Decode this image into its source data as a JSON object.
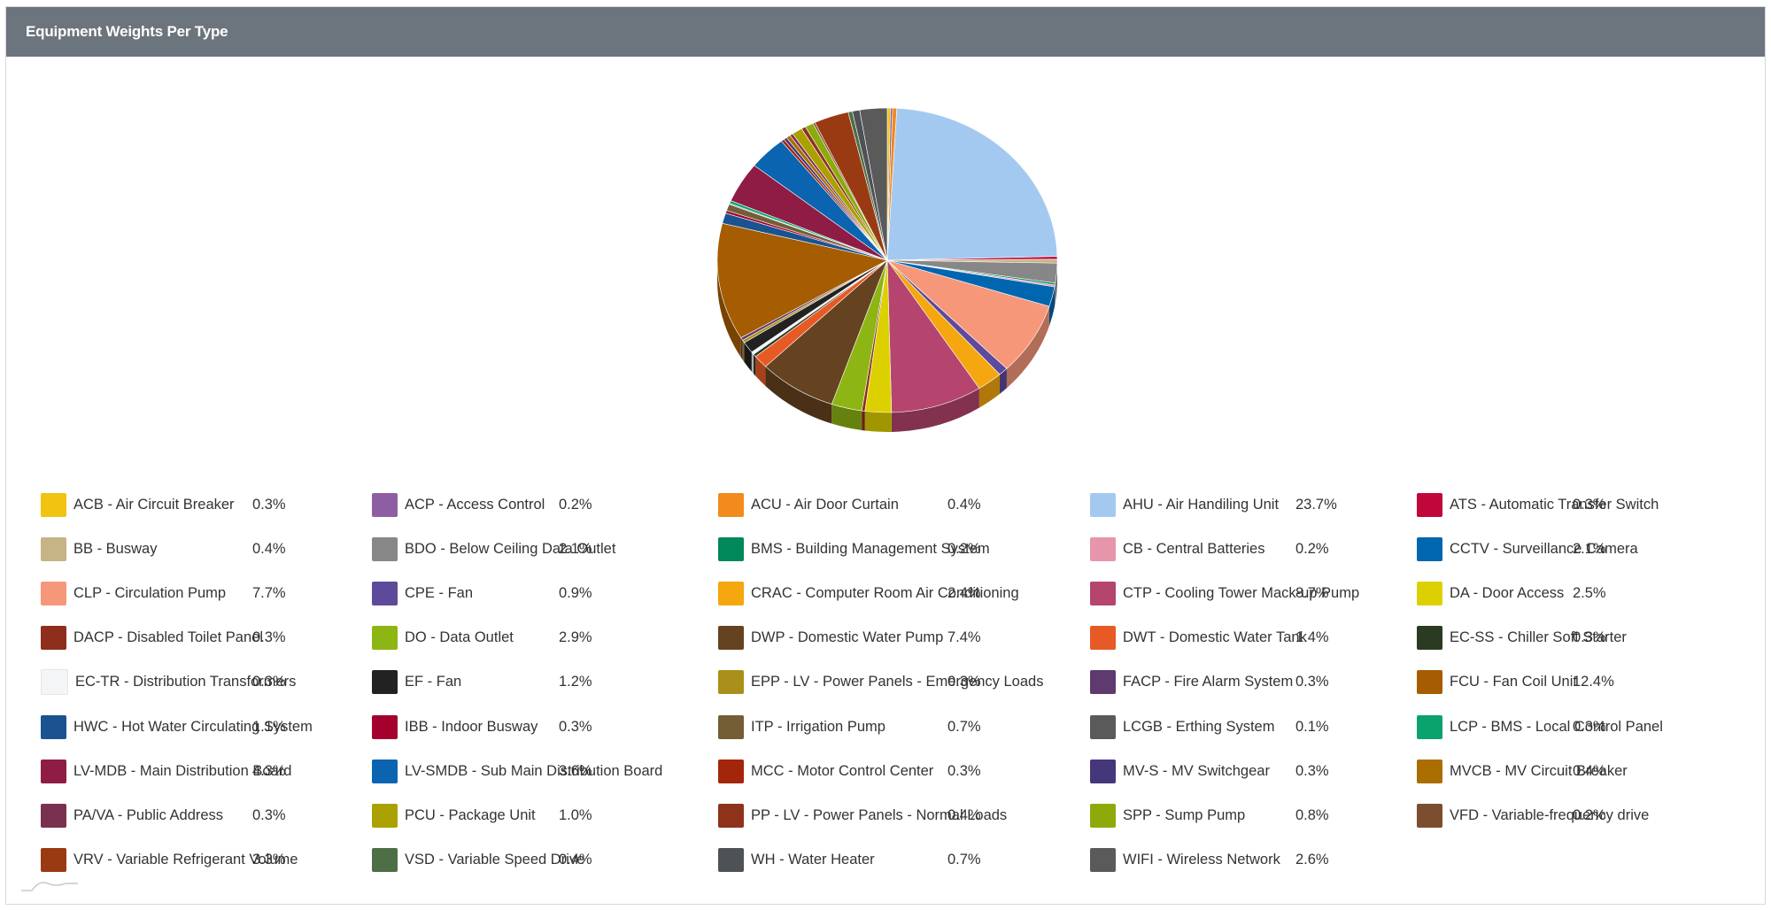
{
  "panel": {
    "title": "Equipment Weights Per Type"
  },
  "chart_data": {
    "type": "pie",
    "title": "",
    "legend_position": "bottom",
    "slices": [
      {
        "label": "ACB - Air Circuit Breaker",
        "pct_label": "0.3%",
        "value": 0.3,
        "color": "#f1c40f"
      },
      {
        "label": "ACP - Access Control",
        "pct_label": "0.2%",
        "value": 0.2,
        "color": "#8e5ea2"
      },
      {
        "label": "ACU - Air Door Curtain",
        "pct_label": "0.4%",
        "value": 0.4,
        "color": "#f28a1c"
      },
      {
        "label": "AHU - Air Handiling Unit",
        "pct_label": "23.7%",
        "value": 23.7,
        "color": "#a3c9f0"
      },
      {
        "label": "ATS - Automatic Transfer Switch",
        "pct_label": "0.3%",
        "value": 0.3,
        "color": "#c0063a"
      },
      {
        "label": "BB - Busway",
        "pct_label": "0.4%",
        "value": 0.4,
        "color": "#c6b386"
      },
      {
        "label": "BDO - Below Ceiling Data Outlet",
        "pct_label": "2.1%",
        "value": 2.1,
        "color": "#878787"
      },
      {
        "label": "BMS - Building Management System",
        "pct_label": "0.2%",
        "value": 0.2,
        "color": "#00875a"
      },
      {
        "label": "CB - Central Batteries",
        "pct_label": "0.2%",
        "value": 0.2,
        "color": "#e695ab"
      },
      {
        "label": "CCTV - Surveillance Camera",
        "pct_label": "2.1%",
        "value": 2.1,
        "color": "#0066b0"
      },
      {
        "label": "CLP - Circulation Pump",
        "pct_label": "7.7%",
        "value": 7.7,
        "color": "#f7977a"
      },
      {
        "label": "CPE - Fan",
        "pct_label": "0.9%",
        "value": 0.9,
        "color": "#5e4a9a"
      },
      {
        "label": "CRAC - Computer Room Air Conditioning",
        "pct_label": "2.4%",
        "value": 2.4,
        "color": "#f4a70e"
      },
      {
        "label": "CTP - Cooling Tower Mack-up Pump",
        "pct_label": "8.7%",
        "value": 8.7,
        "color": "#b5456e"
      },
      {
        "label": "DA - Door Access",
        "pct_label": "2.5%",
        "value": 2.5,
        "color": "#ddd000"
      },
      {
        "label": "DACP - Disabled Toilet Panel",
        "pct_label": "0.3%",
        "value": 0.3,
        "color": "#8e2e1c"
      },
      {
        "label": "DO - Data Outlet",
        "pct_label": "2.9%",
        "value": 2.9,
        "color": "#8db514"
      },
      {
        "label": "DWP - Domestic Water Pump",
        "pct_label": "7.4%",
        "value": 7.4,
        "color": "#654320"
      },
      {
        "label": "DWT - Domestic Water Tank",
        "pct_label": "1.4%",
        "value": 1.4,
        "color": "#e75a26"
      },
      {
        "label": "EC-SS - Chiller Soft Starter",
        "pct_label": "0.3%",
        "value": 0.3,
        "color": "#2a3b22"
      },
      {
        "label": "EC-TR - Distribution Transformers",
        "pct_label": "0.3%",
        "value": 0.3,
        "color": "#f4f5f7"
      },
      {
        "label": "EF - Fan",
        "pct_label": "1.2%",
        "value": 1.2,
        "color": "#222222"
      },
      {
        "label": "EPP - LV - Power Panels - Emergency Loads",
        "pct_label": "0.3%",
        "value": 0.3,
        "color": "#a8901a"
      },
      {
        "label": "FACP - Fire Alarm System",
        "pct_label": "0.3%",
        "value": 0.3,
        "color": "#5e3a6e"
      },
      {
        "label": "FCU - Fan Coil Unit",
        "pct_label": "12.4%",
        "value": 12.4,
        "color": "#a65c00"
      },
      {
        "label": "HWC - Hot Water Circulating System",
        "pct_label": "1.1%",
        "value": 1.1,
        "color": "#1a5390"
      },
      {
        "label": "IBB - Indoor Busway",
        "pct_label": "0.3%",
        "value": 0.3,
        "color": "#a3002e"
      },
      {
        "label": "ITP - Irrigation Pump",
        "pct_label": "0.7%",
        "value": 0.7,
        "color": "#735e35"
      },
      {
        "label": "LCGB - Erthing System",
        "pct_label": "0.1%",
        "value": 0.1,
        "color": "#5a5a5a"
      },
      {
        "label": "LCP - BMS - Local Control Panel",
        "pct_label": "0.3%",
        "value": 0.3,
        "color": "#0aa36e"
      },
      {
        "label": "LV-MDB - Main Distribution Board",
        "pct_label": "4.3%",
        "value": 4.3,
        "color": "#8e1c45"
      },
      {
        "label": "LV-SMDB - Sub Main Distribution Board",
        "pct_label": "3.6%",
        "value": 3.6,
        "color": "#0a64b0"
      },
      {
        "label": "MCC - Motor Control Center",
        "pct_label": "0.3%",
        "value": 0.3,
        "color": "#a3250a"
      },
      {
        "label": "MV-S - MV Switchgear",
        "pct_label": "0.3%",
        "value": 0.3,
        "color": "#46367a"
      },
      {
        "label": "MVCB - MV Circuit Breaker",
        "pct_label": "0.4%",
        "value": 0.4,
        "color": "#aa6e00"
      },
      {
        "label": "PA/VA - Public Address",
        "pct_label": "0.3%",
        "value": 0.3,
        "color": "#7a3050"
      },
      {
        "label": "PCU - Package Unit",
        "pct_label": "1.0%",
        "value": 1.0,
        "color": "#aaa000"
      },
      {
        "label": "PP - LV - Power Panels - Normal Loads",
        "pct_label": "0.4%",
        "value": 0.4,
        "color": "#8e321c"
      },
      {
        "label": "SPP - Sump Pump",
        "pct_label": "0.8%",
        "value": 0.8,
        "color": "#8caa0a"
      },
      {
        "label": "VFD - Variable-frequency drive",
        "pct_label": "0.2%",
        "value": 0.2,
        "color": "#7a4e2e"
      },
      {
        "label": "VRV - Variable Refrigerant Volume",
        "pct_label": "3.3%",
        "value": 3.3,
        "color": "#9a3a12"
      },
      {
        "label": "VSD - Variable Speed Drive",
        "pct_label": "0.4%",
        "value": 0.4,
        "color": "#4e6e46"
      },
      {
        "label": "WH - Water Heater",
        "pct_label": "0.7%",
        "value": 0.7,
        "color": "#4e5256"
      },
      {
        "label": "WIFI - Wireless Network",
        "pct_label": "2.6%",
        "value": 2.6,
        "color": "#5a5a5a"
      }
    ]
  }
}
